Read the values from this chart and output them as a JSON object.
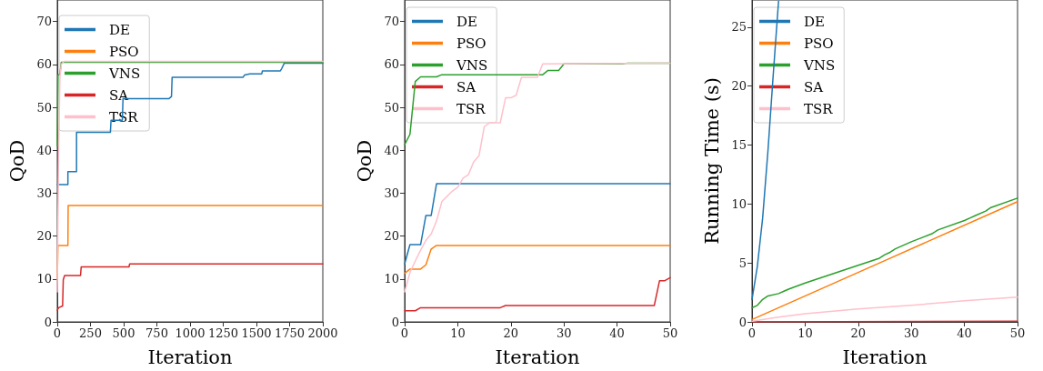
{
  "chart_data": [
    {
      "type": "line",
      "xlabel": "Iteration",
      "ylabel": "QoD",
      "xlim": [
        0,
        2000
      ],
      "xticks": [
        0,
        250,
        500,
        750,
        1000,
        1250,
        1500,
        1750,
        2000
      ],
      "ylim": [
        0,
        75
      ],
      "yticks": [
        0,
        10,
        20,
        30,
        40,
        50,
        60,
        70
      ],
      "grid": false,
      "legend": "top left",
      "marker": "none",
      "line_style": "solid",
      "series": [
        {
          "name": "DE",
          "color": "#1f77b4",
          "x": [
            0,
            80,
            80,
            145,
            145,
            400,
            405,
            490,
            495,
            840,
            860,
            865,
            1400,
            1410,
            1450,
            1540,
            1545,
            1680,
            1690,
            1710,
            2000
          ],
          "values": [
            32,
            32,
            35,
            35,
            44.2,
            44.2,
            47,
            47,
            52,
            52,
            52.5,
            57,
            57,
            57.5,
            57.8,
            57.8,
            58.5,
            58.5,
            59,
            60.3,
            60.3
          ]
        },
        {
          "name": "PSO",
          "color": "#ff7f0e",
          "x": [
            0,
            5,
            80,
            82,
            2000
          ],
          "values": [
            10,
            17.8,
            17.8,
            27.1,
            27.1
          ]
        },
        {
          "name": "VNS",
          "color": "#2ca02c",
          "x": [
            0,
            5,
            20,
            30,
            2000
          ],
          "values": [
            41,
            57.5,
            57.7,
            60.5,
            60.5
          ]
        },
        {
          "name": "SA",
          "color": "#d62728",
          "x": [
            0,
            10,
            40,
            45,
            55,
            175,
            180,
            540,
            545,
            2000
          ],
          "values": [
            2.7,
            3.3,
            3.7,
            9.8,
            10.8,
            10.8,
            12.8,
            12.8,
            13.5,
            13.5
          ]
        },
        {
          "name": "TSR",
          "color": "#ffc0cb",
          "x": [
            0,
            10,
            20,
            30,
            50,
            2000
          ],
          "values": [
            7,
            40,
            57,
            60,
            60.7,
            60.7
          ]
        }
      ]
    },
    {
      "type": "line",
      "xlabel": "Iteration",
      "ylabel": "QoD",
      "xlim": [
        0,
        50
      ],
      "xticks": [
        0,
        10,
        20,
        30,
        40,
        50
      ],
      "ylim": [
        0,
        75
      ],
      "yticks": [
        0,
        10,
        20,
        30,
        40,
        50,
        60,
        70
      ],
      "grid": false,
      "legend": "top left",
      "marker": "none",
      "line_style": "solid",
      "series": [
        {
          "name": "DE",
          "color": "#1f77b4",
          "x": [
            0,
            1,
            3,
            4,
            5,
            6,
            50
          ],
          "values": [
            13.5,
            18,
            18,
            24.8,
            24.8,
            32.2,
            32.2
          ]
        },
        {
          "name": "PSO",
          "color": "#ff7f0e",
          "x": [
            0,
            1,
            3,
            4,
            5,
            6,
            50
          ],
          "values": [
            11.3,
            12.3,
            12.3,
            13.3,
            17,
            17.8,
            17.8
          ]
        },
        {
          "name": "VNS",
          "color": "#2ca02c",
          "x": [
            0,
            1,
            2,
            3,
            6,
            7,
            25,
            26,
            27,
            29,
            30,
            41,
            42,
            50
          ],
          "values": [
            41.3,
            43.7,
            56,
            57.1,
            57.1,
            57.6,
            57.6,
            57.6,
            58.6,
            58.6,
            60.1,
            60.1,
            60.3,
            60.3
          ]
        },
        {
          "name": "SA",
          "color": "#d62728",
          "x": [
            0,
            2,
            3,
            18,
            19,
            47,
            48,
            49,
            50
          ],
          "values": [
            2.6,
            2.6,
            3.3,
            3.3,
            3.8,
            3.8,
            9.6,
            9.6,
            10.3
          ]
        },
        {
          "name": "TSR",
          "color": "#ffc0cb",
          "x": [
            0,
            1,
            2,
            3,
            4,
            5,
            6,
            7,
            8,
            9,
            10,
            11,
            12,
            13,
            14,
            15,
            16,
            17,
            18,
            19,
            20,
            21,
            22,
            25,
            26,
            50
          ],
          "values": [
            7,
            11.5,
            14.2,
            16.7,
            19,
            20.5,
            23.5,
            28,
            29.3,
            30.5,
            31.4,
            33.5,
            34.3,
            37.3,
            38.7,
            45.5,
            46.4,
            46.4,
            46.4,
            52.2,
            52.2,
            52.8,
            57,
            57,
            60.1,
            60.3
          ]
        }
      ]
    },
    {
      "type": "line",
      "xlabel": "Iteration",
      "ylabel": "Running Time (s)",
      "xlim": [
        0,
        50
      ],
      "xticks": [
        0,
        10,
        20,
        30,
        40,
        50
      ],
      "ylim": [
        0,
        27.3
      ],
      "yticks": [
        0,
        5,
        10,
        15,
        20,
        25
      ],
      "grid": false,
      "legend": "top left",
      "marker": "none",
      "line_style": "solid",
      "series": [
        {
          "name": "DE",
          "color": "#1f77b4",
          "x": [
            0,
            1,
            2,
            3,
            4,
            5
          ],
          "values": [
            1.9,
            4.7,
            8.8,
            14.5,
            21,
            27.2
          ]
        },
        {
          "name": "PSO",
          "color": "#ff7f0e",
          "x": [
            0,
            25,
            50
          ],
          "values": [
            0.2,
            5.2,
            10.2
          ]
        },
        {
          "name": "VNS",
          "color": "#2ca02c",
          "x": [
            0,
            1,
            2,
            3,
            5,
            6,
            7,
            10,
            20,
            24,
            25,
            26,
            27,
            30,
            34,
            35,
            40,
            41,
            42,
            44,
            45,
            50
          ],
          "values": [
            1.2,
            1.4,
            1.9,
            2.2,
            2.4,
            2.6,
            2.8,
            3.3,
            4.8,
            5.4,
            5.7,
            5.9,
            6.2,
            6.8,
            7.5,
            7.8,
            8.6,
            8.8,
            9,
            9.4,
            9.7,
            10.5
          ]
        },
        {
          "name": "SA",
          "color": "#d62728",
          "x": [
            0,
            50
          ],
          "values": [
            0,
            0.05
          ]
        },
        {
          "name": "TSR",
          "color": "#ffc0cb",
          "x": [
            0,
            5,
            10,
            20,
            30,
            40,
            50
          ],
          "values": [
            0.05,
            0.4,
            0.7,
            1.1,
            1.4,
            1.8,
            2.1
          ]
        }
      ]
    }
  ]
}
